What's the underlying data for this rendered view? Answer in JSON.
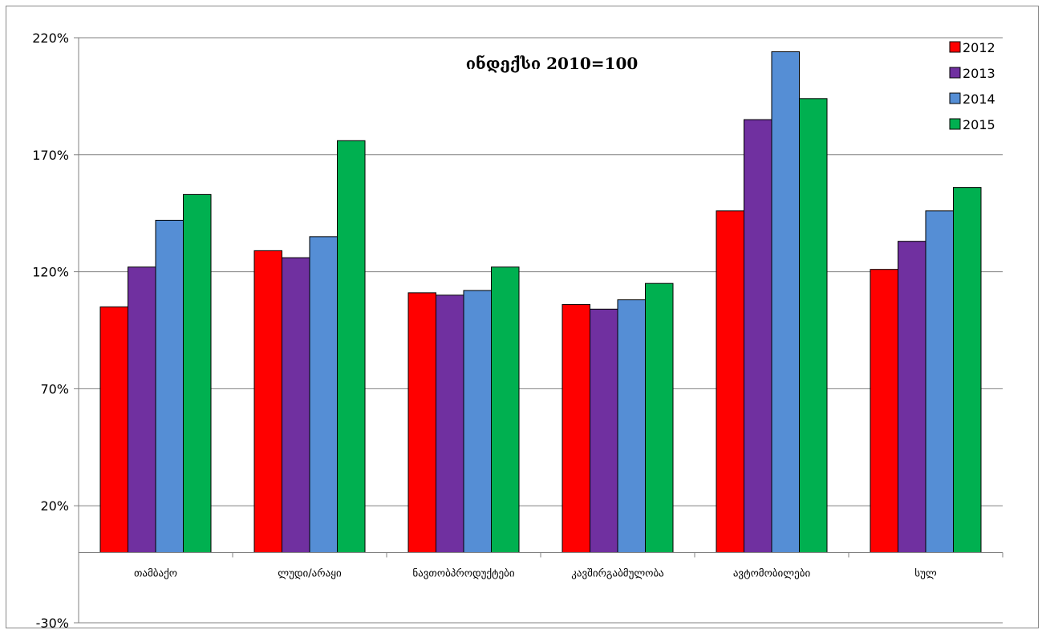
{
  "chart_data": {
    "type": "bar",
    "title": "ინდექსი 2010=100",
    "categories": [
      "თამბაქო",
      "ლუდი/არაყი",
      "ნავთობპროდუქტები",
      "კავშირგაბმულობა",
      "ავტომობილები",
      "სულ"
    ],
    "series": [
      {
        "name": "2012",
        "color": "#ff0000",
        "values": [
          105,
          129,
          111,
          106,
          146,
          121
        ]
      },
      {
        "name": "2013",
        "color": "#7030a0",
        "values": [
          122,
          126,
          110,
          104,
          185,
          133
        ]
      },
      {
        "name": "2014",
        "color": "#558ed5",
        "values": [
          142,
          135,
          112,
          108,
          214,
          146
        ]
      },
      {
        "name": "2015",
        "color": "#00b050",
        "values": [
          153,
          176,
          122,
          115,
          194,
          156
        ]
      }
    ],
    "ylim": [
      -30,
      220
    ],
    "yticks": [
      -30,
      20,
      70,
      120,
      170,
      220
    ],
    "ytick_labels": [
      "-30%",
      "20%",
      "70%",
      "120%",
      "170%",
      "220%"
    ],
    "grid": true,
    "legend_position": "top-right",
    "xlabel": "",
    "ylabel": ""
  }
}
